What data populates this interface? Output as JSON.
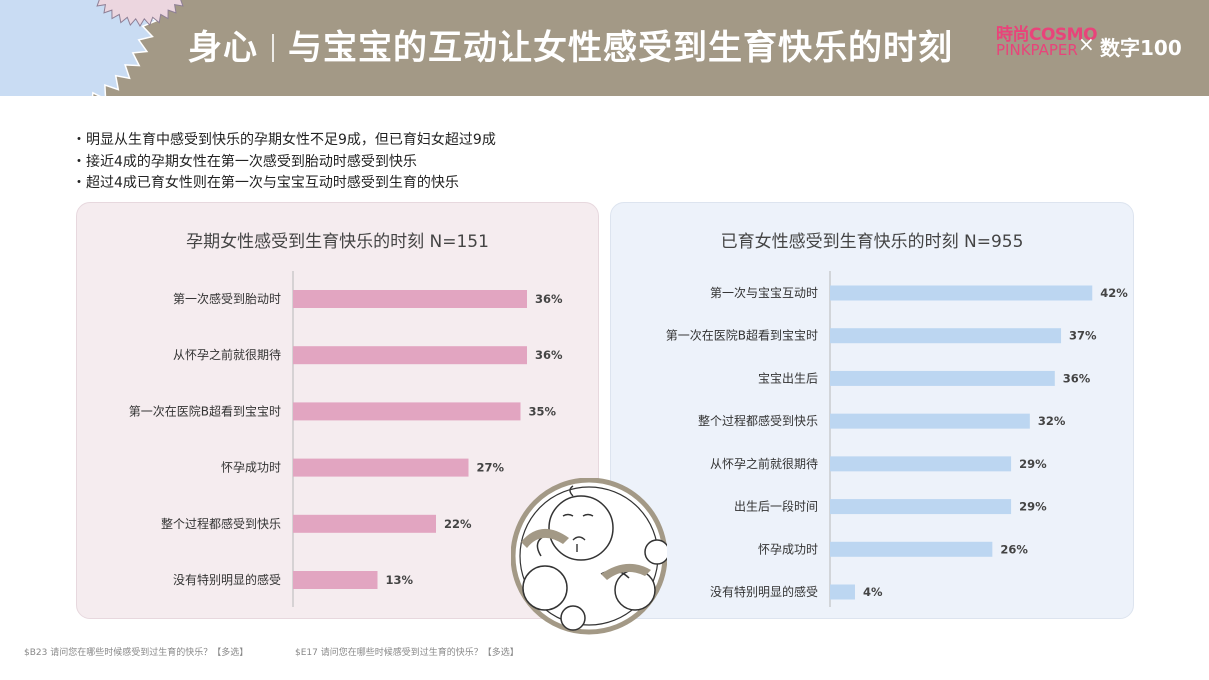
{
  "header": {
    "title_left": "身心",
    "title_right": "与宝宝的互动让女性感受到生育快乐的时刻",
    "logo_cosmo_line1": "時尚COSMO",
    "logo_cosmo_line2": "PINKPAPER",
    "logo_x": "×",
    "logo_digit": "数字100",
    "bar_color": "#a39986"
  },
  "bullets": [
    "明显从生育中感受到快乐的孕期女性不足9成，但已育妇女超过9成",
    "接近4成的孕期女性在第一次感受到胎动时感受到快乐",
    "超过4成已育女性则在第一次与宝宝互动时感受到生育的快乐"
  ],
  "chart_data": [
    {
      "type": "bar",
      "orientation": "horizontal",
      "title": "孕期女性感受到生育快乐的时刻 N=151",
      "categories": [
        "第一次感受到胎动时",
        "从怀孕之前就很期待",
        "第一次在医院B超看到宝宝时",
        "怀孕成功时",
        "整个过程都感受到快乐",
        "没有特别明显的感受"
      ],
      "values": [
        36,
        36,
        35,
        27,
        22,
        13
      ],
      "value_labels": [
        "36%",
        "36%",
        "35%",
        "27%",
        "22%",
        "13%"
      ],
      "xlim": [
        0,
        50
      ],
      "bar_color": "#e2a5c1",
      "panel_color": "#f5ecef"
    },
    {
      "type": "bar",
      "orientation": "horizontal",
      "title": "已育女性感受到生育快乐的时刻 N=955",
      "categories": [
        "第一次与宝宝互动时",
        "第一次在医院B超看到宝宝时",
        "宝宝出生后",
        "整个过程都感受到快乐",
        "从怀孕之前就很期待",
        "出生后一段时间",
        "怀孕成功时",
        "没有特别明显的感受"
      ],
      "values": [
        42,
        37,
        36,
        32,
        29,
        29,
        26,
        4
      ],
      "value_labels": [
        "42%",
        "37%",
        "36%",
        "32%",
        "29%",
        "29%",
        "26%",
        "4%"
      ],
      "xlim": [
        0,
        45
      ],
      "bar_color": "#bcd6f1",
      "panel_color": "#edf2fa"
    }
  ],
  "footnotes": {
    "left": "$B23 请问您在哪些时候感受到过生育的快乐？【多选】",
    "right": "$E17 请问您在哪些时候感受到过生育的快乐？【多选】"
  }
}
